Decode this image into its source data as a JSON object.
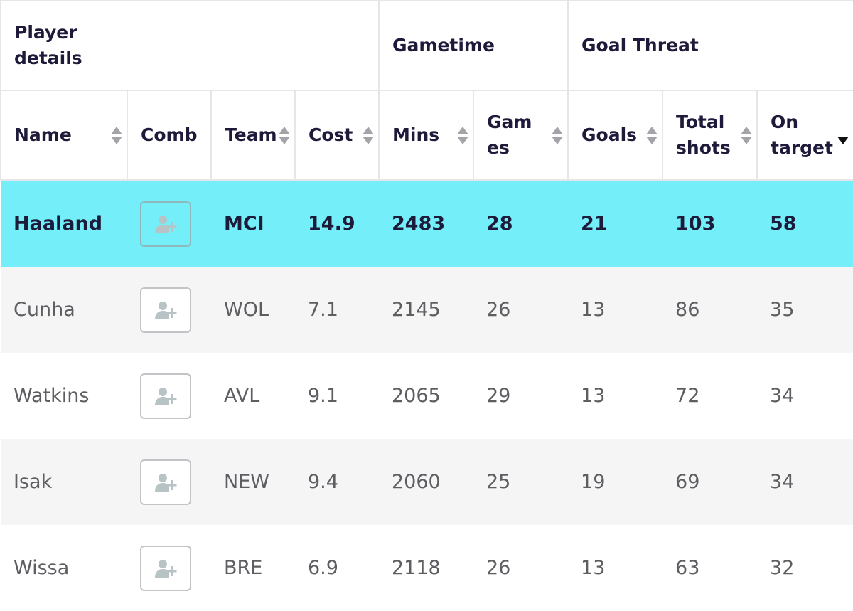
{
  "group_headers": [
    "Player details",
    "Gametime",
    "Goal Threat"
  ],
  "columns": {
    "name": "Name",
    "comb": "Comb",
    "team": "Team",
    "cost": "Cost",
    "mins": "Mins",
    "games": "Games",
    "goals": "Goals",
    "total_shots": "Total shots",
    "on_target": "On target"
  },
  "sort": {
    "column": "on_target",
    "direction": "descending"
  },
  "icons": {
    "comb_button": "add-user-icon"
  },
  "colors": {
    "highlight_row": "#74eef8",
    "header_text": "#1e1a3a",
    "body_text": "#5d5d62"
  },
  "rows": [
    {
      "name": "Haaland",
      "team": "MCI",
      "cost": "14.9",
      "mins": "2483",
      "games": "28",
      "goals": "21",
      "total_shots": "103",
      "on_target": "58",
      "highlighted": true
    },
    {
      "name": "Cunha",
      "team": "WOL",
      "cost": "7.1",
      "mins": "2145",
      "games": "26",
      "goals": "13",
      "total_shots": "86",
      "on_target": "35"
    },
    {
      "name": "Watkins",
      "team": "AVL",
      "cost": "9.1",
      "mins": "2065",
      "games": "29",
      "goals": "13",
      "total_shots": "72",
      "on_target": "34"
    },
    {
      "name": "Isak",
      "team": "NEW",
      "cost": "9.4",
      "mins": "2060",
      "games": "25",
      "goals": "19",
      "total_shots": "69",
      "on_target": "34"
    },
    {
      "name": "Wissa",
      "team": "BRE",
      "cost": "6.9",
      "mins": "2118",
      "games": "26",
      "goals": "13",
      "total_shots": "63",
      "on_target": "32"
    }
  ]
}
